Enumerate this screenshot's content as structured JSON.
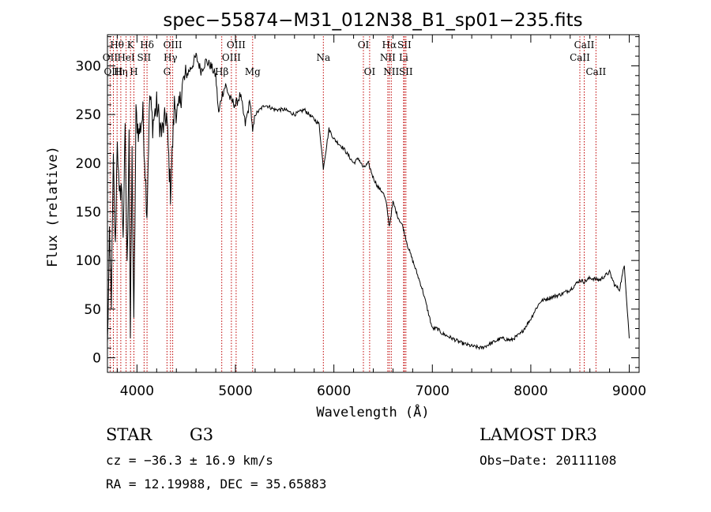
{
  "chart_data": {
    "type": "line",
    "title": "spec−55874−M31_012N38_B1_sp01−235.fits",
    "xlabel": "Wavelength (Å)",
    "ylabel": "Flux (relative)",
    "xlim": [
      3700,
      9100
    ],
    "ylim": [
      -15,
      332
    ],
    "x_ticks": [
      4000,
      5000,
      6000,
      7000,
      8000,
      9000
    ],
    "y_ticks": [
      0,
      50,
      100,
      150,
      200,
      250,
      300
    ],
    "grid": false,
    "series": [
      {
        "name": "spectrum",
        "x": [
          3700,
          3720,
          3740,
          3760,
          3780,
          3800,
          3820,
          3840,
          3860,
          3880,
          3900,
          3920,
          3933,
          3950,
          3968,
          3990,
          4020,
          4060,
          4101,
          4130,
          4160,
          4200,
          4250,
          4300,
          4340,
          4380,
          4420,
          4460,
          4500,
          4560,
          4600,
          4650,
          4700,
          4750,
          4800,
          4830,
          4861,
          4900,
          4950,
          5000,
          5050,
          5100,
          5150,
          5175,
          5200,
          5300,
          5400,
          5500,
          5600,
          5700,
          5800,
          5850,
          5893,
          5950,
          6000,
          6100,
          6200,
          6250,
          6300,
          6350,
          6400,
          6450,
          6500,
          6530,
          6563,
          6600,
          6650,
          6700,
          6750,
          6800,
          6850,
          6900,
          6950,
          7000,
          7050,
          7100,
          7200,
          7300,
          7400,
          7500,
          7600,
          7700,
          7800,
          7900,
          8000,
          8050,
          8100,
          8200,
          8300,
          8400,
          8450,
          8500,
          8542,
          8600,
          8700,
          8800,
          8850,
          8900,
          8950,
          9000
        ],
        "y": [
          10,
          120,
          60,
          200,
          110,
          230,
          160,
          180,
          130,
          230,
          90,
          240,
          20,
          210,
          30,
          250,
          230,
          250,
          150,
          270,
          240,
          260,
          230,
          250,
          170,
          260,
          250,
          280,
          290,
          300,
          310,
          295,
          305,
          300,
          290,
          250,
          270,
          280,
          265,
          260,
          270,
          240,
          265,
          230,
          250,
          260,
          255,
          255,
          250,
          255,
          245,
          240,
          195,
          235,
          225,
          215,
          200,
          205,
          195,
          200,
          185,
          175,
          170,
          160,
          135,
          160,
          145,
          135,
          115,
          100,
          85,
          70,
          50,
          30,
          30,
          25,
          20,
          15,
          12,
          10,
          15,
          20,
          18,
          25,
          40,
          50,
          58,
          62,
          65,
          70,
          75,
          80,
          78,
          82,
          80,
          88,
          75,
          70,
          95,
          20
        ]
      }
    ],
    "lines": [
      {
        "name": "Hθ",
        "x": 3798,
        "row": 1
      },
      {
        "name": "OII",
        "x": 3727,
        "row": 2
      },
      {
        "name": "OIII",
        "x": 3760,
        "row": 3
      },
      {
        "name": "Hη",
        "x": 3836,
        "row": 3
      },
      {
        "name": "HeI",
        "x": 3889,
        "row": 2
      },
      {
        "name": "K",
        "x": 3934,
        "row": 1
      },
      {
        "name": "H",
        "x": 3969,
        "row": 3
      },
      {
        "name": "Hδ",
        "x": 4102,
        "row": 1
      },
      {
        "name": "SII",
        "x": 4072,
        "row": 2
      },
      {
        "name": "OIII",
        "x": 4363,
        "row": 1
      },
      {
        "name": "Hγ",
        "x": 4340,
        "row": 2
      },
      {
        "name": "G",
        "x": 4305,
        "row": 3
      },
      {
        "name": "Hβ",
        "x": 4861,
        "row": 3
      },
      {
        "name": "OIII",
        "x": 5007,
        "row": 1
      },
      {
        "name": "OIII",
        "x": 4959,
        "row": 2
      },
      {
        "name": "Mg",
        "x": 5175,
        "row": 3
      },
      {
        "name": "Na",
        "x": 5893,
        "row": 2
      },
      {
        "name": "OI",
        "x": 6300,
        "row": 1
      },
      {
        "name": "OI",
        "x": 6363,
        "row": 3
      },
      {
        "name": "Hα",
        "x": 6563,
        "row": 1
      },
      {
        "name": "NII",
        "x": 6548,
        "row": 2
      },
      {
        "name": "NII",
        "x": 6583,
        "row": 3
      },
      {
        "name": "SII",
        "x": 6716,
        "row": 1
      },
      {
        "name": "Li",
        "x": 6708,
        "row": 2
      },
      {
        "name": "SII",
        "x": 6731,
        "row": 3
      },
      {
        "name": "CaII",
        "x": 8542,
        "row": 1
      },
      {
        "name": "CaII",
        "x": 8498,
        "row": 2
      },
      {
        "name": "CaII",
        "x": 8662,
        "row": 3
      }
    ]
  },
  "info": {
    "object_class": "STAR",
    "subclass": "G3",
    "survey": "LAMOST DR3",
    "cz": "cz = −36.3 ± 16.9 km/s",
    "obs_date": "Obs−Date: 20111108",
    "coords": "RA =  12.19988, DEC =  35.65883"
  }
}
